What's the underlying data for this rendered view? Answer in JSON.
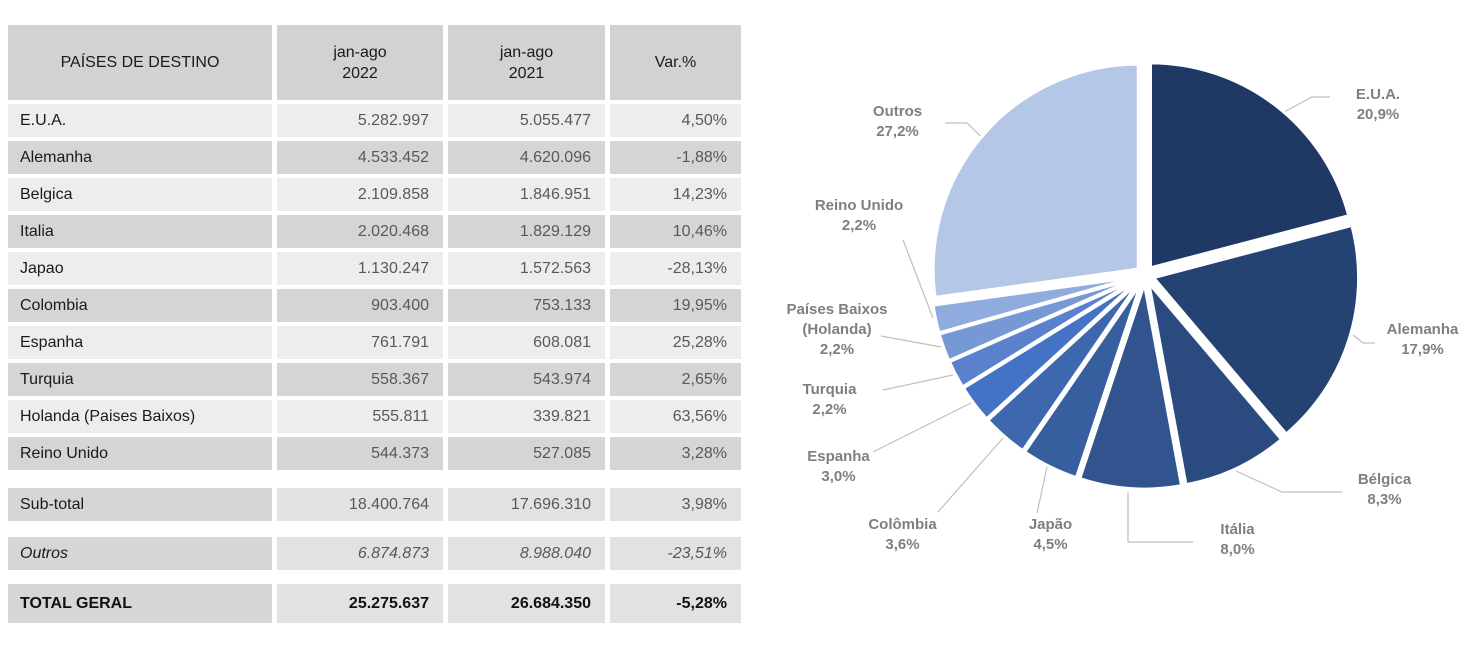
{
  "table": {
    "headers": {
      "destino": "PAÍSES DE DESTINO",
      "col2022": "jan-ago\n2022",
      "col2021": "jan-ago\n2021",
      "var": "Var.%"
    },
    "rows": [
      {
        "country": "E.U.A.",
        "y2022": "5.282.997",
        "y2021": "5.055.477",
        "var": "4,50%"
      },
      {
        "country": "Alemanha",
        "y2022": "4.533.452",
        "y2021": "4.620.096",
        "var": "-1,88%"
      },
      {
        "country": "Belgica",
        "y2022": "2.109.858",
        "y2021": "1.846.951",
        "var": "14,23%"
      },
      {
        "country": "Italia",
        "y2022": "2.020.468",
        "y2021": "1.829.129",
        "var": "10,46%"
      },
      {
        "country": "Japao",
        "y2022": "1.130.247",
        "y2021": "1.572.563",
        "var": "-28,13%"
      },
      {
        "country": "Colombia",
        "y2022": "903.400",
        "y2021": "753.133",
        "var": "19,95%"
      },
      {
        "country": "Espanha",
        "y2022": "761.791",
        "y2021": "608.081",
        "var": "25,28%"
      },
      {
        "country": "Turquia",
        "y2022": "558.367",
        "y2021": "543.974",
        "var": "2,65%"
      },
      {
        "country": "Holanda (Paises Baixos)",
        "y2022": "555.811",
        "y2021": "339.821",
        "var": "63,56%"
      },
      {
        "country": "Reino Unido",
        "y2022": "544.373",
        "y2021": "527.085",
        "var": "3,28%"
      }
    ],
    "subtotal": {
      "country": "Sub-total",
      "y2022": "18.400.764",
      "y2021": "17.696.310",
      "var": "3,98%"
    },
    "outros": {
      "country": "Outros",
      "y2022": "6.874.873",
      "y2021": "8.988.040",
      "var": "-23,51%"
    },
    "total": {
      "country": "TOTAL GERAL",
      "y2022": "25.275.637",
      "y2021": "26.684.350",
      "var": "-5,28%"
    }
  },
  "chart_data": {
    "type": "pie",
    "title": "",
    "direction": "clockwise",
    "start_angle_deg": 0,
    "legend_position": "none",
    "labels_outside_with_leader_lines": true,
    "slices": [
      {
        "label": "E.U.A.",
        "pct": "20,9%",
        "value": 20.9,
        "color": "#1F3864"
      },
      {
        "label": "Alemanha",
        "pct": "17,9%",
        "value": 17.9,
        "color": "#254372"
      },
      {
        "label": "Bélgica",
        "pct": "8,3%",
        "value": 8.3,
        "color": "#2B4B80"
      },
      {
        "label": "Itália",
        "pct": "8,0%",
        "value": 8.0,
        "color": "#31548F"
      },
      {
        "label": "Japão",
        "pct": "4,5%",
        "value": 4.5,
        "color": "#375E9E"
      },
      {
        "label": "Colômbia",
        "pct": "3,6%",
        "value": 3.6,
        "color": "#3D68AE"
      },
      {
        "label": "Espanha",
        "pct": "3,0%",
        "value": 3.0,
        "color": "#4472C4"
      },
      {
        "label": "Turquia",
        "pct": "2,2%",
        "value": 2.2,
        "color": "#5C81CC"
      },
      {
        "label": "Países Baixos (Holanda)",
        "pct": "2,2%",
        "value": 2.2,
        "color": "#7698D5"
      },
      {
        "label": "Reino Unido",
        "pct": "2,2%",
        "value": 2.2,
        "color": "#90ABDE"
      },
      {
        "label": "Outros",
        "pct": "27,2%",
        "value": 27.2,
        "color": "#B4C7E7"
      }
    ]
  },
  "colors": {
    "leader_line": "#BFBFBF",
    "pie_label_text": "#7F7F7F",
    "slice_border": "#FFFFFF"
  }
}
